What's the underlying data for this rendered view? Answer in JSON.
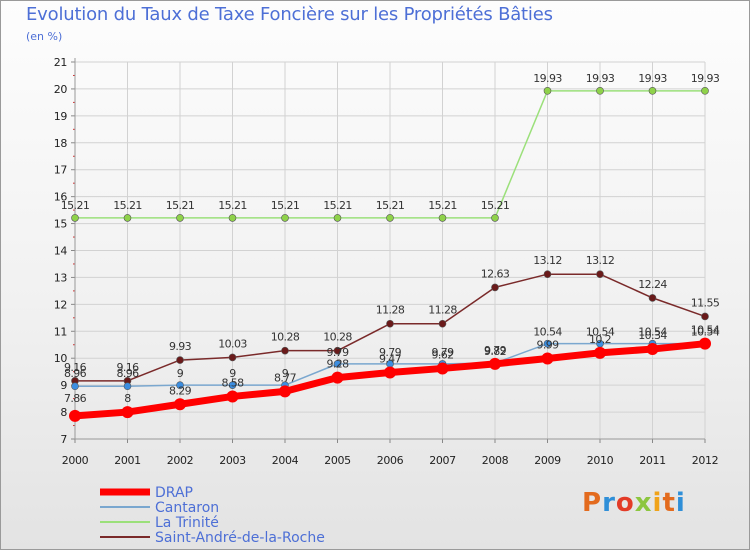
{
  "page": {
    "title": "Evolution du Taux de Taxe Foncière sur les Propriétés Bâties",
    "unit_label": "(en %)",
    "brand": "Proxiti"
  },
  "colors": {
    "title": "#4d6fd6",
    "drap": "#ff0000",
    "cantaron": "#7aa7cf",
    "la_trinite": "#9be07a",
    "saint_andre": "#7a2a2a",
    "grid": "#cccccc"
  },
  "chart_data": {
    "type": "line",
    "title": "Evolution du Taux de Taxe Foncière sur les Propriétés Bâties",
    "ylabel": "(en %)",
    "xlabel": "",
    "x": [
      "2000",
      "2001",
      "2002",
      "2003",
      "2004",
      "2005",
      "2006",
      "2007",
      "2008",
      "2009",
      "2010",
      "2011",
      "2012"
    ],
    "ylim": [
      7,
      21
    ],
    "yticks": [
      "7",
      "8",
      "9",
      "10",
      "11",
      "12",
      "13",
      "14",
      "15",
      "16",
      "17",
      "18",
      "19",
      "20",
      "21"
    ],
    "grid": true,
    "legend_position": "bottom-left",
    "series": [
      {
        "name": "DRAP",
        "color": "#ff0000",
        "values": [
          7.86,
          8,
          8.29,
          8.58,
          8.77,
          9.28,
          9.47,
          9.62,
          9.79,
          9.99,
          10.2,
          10.34,
          10.54
        ],
        "labels": [
          "7.86",
          "8",
          "8.29",
          "8.58",
          "8.77",
          "9.28",
          "9.47",
          "9.62",
          "9.79",
          "9.99",
          "10.2",
          "10.34",
          "10.54"
        ]
      },
      {
        "name": "Cantaron",
        "color": "#7aa7cf",
        "values": [
          8.96,
          8.96,
          9,
          9,
          9,
          9.79,
          9.79,
          9.79,
          9.82,
          10.54,
          10.54,
          10.54,
          10.54
        ],
        "labels": [
          "8.96",
          "8.96",
          "9",
          "9",
          "9",
          "9.79",
          "9.79",
          "9.79",
          "9.82",
          "10.54",
          "10.54",
          "10.54",
          "10.54"
        ]
      },
      {
        "name": "La Trinité",
        "color": "#9be07a",
        "values": [
          15.21,
          15.21,
          15.21,
          15.21,
          15.21,
          15.21,
          15.21,
          15.21,
          15.21,
          19.93,
          19.93,
          19.93,
          19.93
        ],
        "labels": [
          "15.21",
          "15.21",
          "15.21",
          "15.21",
          "15.21",
          "15.21",
          "15.21",
          "15.21",
          "15.21",
          "19.93",
          "19.93",
          "19.93",
          "19.93"
        ]
      },
      {
        "name": "Saint-André-de-la-Roche",
        "color": "#7a2a2a",
        "values": [
          9.16,
          9.16,
          9.93,
          10.03,
          10.28,
          10.28,
          11.28,
          11.28,
          12.63,
          13.12,
          13.12,
          12.24,
          11.55
        ],
        "labels": [
          "9.16",
          "9.16",
          "9.93",
          "10.03",
          "10.28",
          "10.28",
          "11.28",
          "11.28",
          "12.63",
          "13.12",
          "13.12",
          "12.24",
          "11.55"
        ]
      }
    ]
  }
}
